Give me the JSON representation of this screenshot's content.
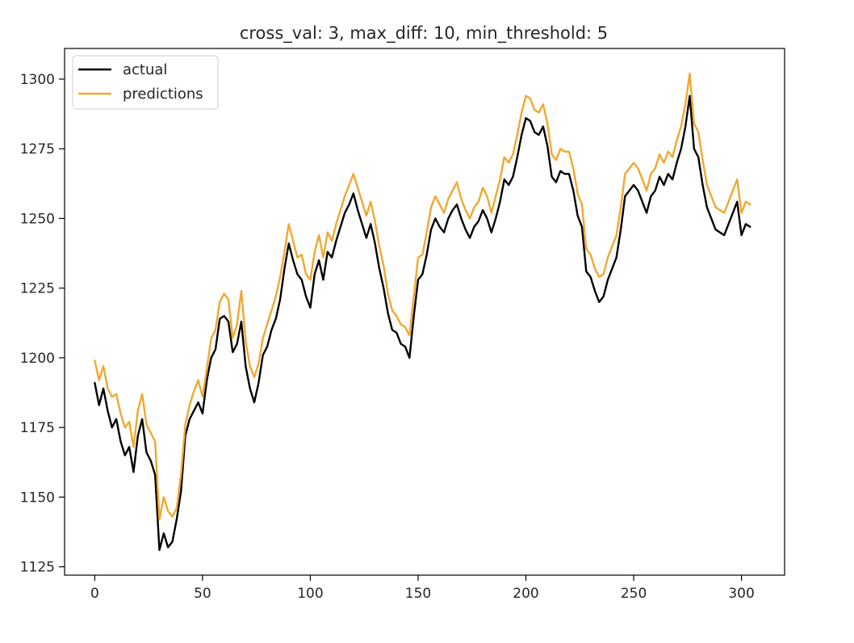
{
  "chart_data": {
    "type": "line",
    "title": "cross_val: 3, max_diff: 10, min_threshold: 5",
    "xlabel": "",
    "ylabel": "",
    "xlim": [
      -14,
      320
    ],
    "ylim": [
      1122,
      1311
    ],
    "x_ticks": [
      0,
      50,
      100,
      150,
      200,
      250,
      300
    ],
    "x_tick_labels": [
      "0",
      "50",
      "100",
      "150",
      "200",
      "250",
      "300"
    ],
    "y_ticks": [
      1125,
      1150,
      1175,
      1200,
      1225,
      1250,
      1275,
      1300
    ],
    "y_tick_labels": [
      "1125",
      "1150",
      "1175",
      "1200",
      "1225",
      "1250",
      "1275",
      "1300"
    ],
    "grid": false,
    "legend": {
      "position": "top-left"
    },
    "series": [
      {
        "name": "actual",
        "color": "#000000",
        "points": [
          [
            0,
            1191
          ],
          [
            2,
            1183
          ],
          [
            4,
            1189
          ],
          [
            6,
            1181
          ],
          [
            8,
            1175
          ],
          [
            10,
            1178
          ],
          [
            12,
            1170
          ],
          [
            14,
            1165
          ],
          [
            16,
            1168
          ],
          [
            18,
            1159
          ],
          [
            20,
            1172
          ],
          [
            22,
            1178
          ],
          [
            24,
            1166
          ],
          [
            26,
            1163
          ],
          [
            28,
            1158
          ],
          [
            30,
            1131
          ],
          [
            32,
            1137
          ],
          [
            34,
            1132
          ],
          [
            36,
            1134
          ],
          [
            38,
            1142
          ],
          [
            40,
            1152
          ],
          [
            42,
            1172
          ],
          [
            44,
            1178
          ],
          [
            46,
            1181
          ],
          [
            48,
            1184
          ],
          [
            50,
            1180
          ],
          [
            52,
            1192
          ],
          [
            54,
            1200
          ],
          [
            56,
            1203
          ],
          [
            58,
            1214
          ],
          [
            60,
            1215
          ],
          [
            62,
            1213
          ],
          [
            64,
            1202
          ],
          [
            66,
            1205
          ],
          [
            68,
            1213
          ],
          [
            70,
            1197
          ],
          [
            72,
            1189
          ],
          [
            74,
            1184
          ],
          [
            76,
            1191
          ],
          [
            78,
            1201
          ],
          [
            80,
            1204
          ],
          [
            82,
            1210
          ],
          [
            84,
            1214
          ],
          [
            86,
            1221
          ],
          [
            88,
            1232
          ],
          [
            90,
            1241
          ],
          [
            92,
            1235
          ],
          [
            94,
            1230
          ],
          [
            96,
            1228
          ],
          [
            98,
            1222
          ],
          [
            100,
            1218
          ],
          [
            102,
            1230
          ],
          [
            104,
            1235
          ],
          [
            106,
            1228
          ],
          [
            108,
            1238
          ],
          [
            110,
            1236
          ],
          [
            112,
            1242
          ],
          [
            114,
            1247
          ],
          [
            116,
            1252
          ],
          [
            118,
            1255
          ],
          [
            120,
            1259
          ],
          [
            122,
            1253
          ],
          [
            124,
            1248
          ],
          [
            126,
            1243
          ],
          [
            128,
            1248
          ],
          [
            130,
            1241
          ],
          [
            132,
            1232
          ],
          [
            134,
            1225
          ],
          [
            136,
            1216
          ],
          [
            138,
            1210
          ],
          [
            140,
            1209
          ],
          [
            142,
            1205
          ],
          [
            144,
            1204
          ],
          [
            146,
            1200
          ],
          [
            148,
            1215
          ],
          [
            150,
            1228
          ],
          [
            152,
            1230
          ],
          [
            154,
            1237
          ],
          [
            156,
            1246
          ],
          [
            158,
            1250
          ],
          [
            160,
            1247
          ],
          [
            162,
            1245
          ],
          [
            164,
            1250
          ],
          [
            166,
            1253
          ],
          [
            168,
            1255
          ],
          [
            170,
            1250
          ],
          [
            172,
            1246
          ],
          [
            174,
            1243
          ],
          [
            176,
            1247
          ],
          [
            178,
            1249
          ],
          [
            180,
            1253
          ],
          [
            182,
            1250
          ],
          [
            184,
            1245
          ],
          [
            186,
            1250
          ],
          [
            188,
            1256
          ],
          [
            190,
            1264
          ],
          [
            192,
            1262
          ],
          [
            194,
            1265
          ],
          [
            196,
            1272
          ],
          [
            198,
            1280
          ],
          [
            200,
            1286
          ],
          [
            202,
            1285
          ],
          [
            204,
            1281
          ],
          [
            206,
            1280
          ],
          [
            208,
            1283
          ],
          [
            210,
            1276
          ],
          [
            212,
            1265
          ],
          [
            214,
            1263
          ],
          [
            216,
            1267
          ],
          [
            218,
            1266
          ],
          [
            220,
            1266
          ],
          [
            222,
            1260
          ],
          [
            224,
            1251
          ],
          [
            226,
            1247
          ],
          [
            228,
            1231
          ],
          [
            230,
            1229
          ],
          [
            232,
            1224
          ],
          [
            234,
            1220
          ],
          [
            236,
            1222
          ],
          [
            238,
            1228
          ],
          [
            240,
            1232
          ],
          [
            242,
            1236
          ],
          [
            244,
            1246
          ],
          [
            246,
            1258
          ],
          [
            248,
            1260
          ],
          [
            250,
            1262
          ],
          [
            252,
            1260
          ],
          [
            254,
            1256
          ],
          [
            256,
            1252
          ],
          [
            258,
            1258
          ],
          [
            260,
            1260
          ],
          [
            262,
            1265
          ],
          [
            264,
            1262
          ],
          [
            266,
            1266
          ],
          [
            268,
            1264
          ],
          [
            270,
            1270
          ],
          [
            272,
            1275
          ],
          [
            274,
            1283
          ],
          [
            276,
            1294
          ],
          [
            278,
            1275
          ],
          [
            280,
            1272
          ],
          [
            282,
            1262
          ],
          [
            284,
            1254
          ],
          [
            286,
            1250
          ],
          [
            288,
            1246
          ],
          [
            290,
            1245
          ],
          [
            292,
            1244
          ],
          [
            294,
            1248
          ],
          [
            296,
            1252
          ],
          [
            298,
            1256
          ],
          [
            300,
            1244
          ],
          [
            302,
            1248
          ],
          [
            304,
            1247
          ]
        ]
      },
      {
        "name": "predictions",
        "color": "#f0a830",
        "points": [
          [
            0,
            1199
          ],
          [
            2,
            1192
          ],
          [
            4,
            1197
          ],
          [
            6,
            1189
          ],
          [
            8,
            1186
          ],
          [
            10,
            1187
          ],
          [
            12,
            1180
          ],
          [
            14,
            1175
          ],
          [
            16,
            1177
          ],
          [
            18,
            1168
          ],
          [
            20,
            1181
          ],
          [
            22,
            1187
          ],
          [
            24,
            1176
          ],
          [
            26,
            1173
          ],
          [
            28,
            1170
          ],
          [
            30,
            1142
          ],
          [
            32,
            1150
          ],
          [
            34,
            1145
          ],
          [
            36,
            1143
          ],
          [
            38,
            1146
          ],
          [
            40,
            1158
          ],
          [
            42,
            1176
          ],
          [
            44,
            1183
          ],
          [
            46,
            1188
          ],
          [
            48,
            1192
          ],
          [
            50,
            1186
          ],
          [
            52,
            1196
          ],
          [
            54,
            1207
          ],
          [
            56,
            1210
          ],
          [
            58,
            1220
          ],
          [
            60,
            1223
          ],
          [
            62,
            1221
          ],
          [
            64,
            1207
          ],
          [
            66,
            1212
          ],
          [
            68,
            1224
          ],
          [
            70,
            1206
          ],
          [
            72,
            1197
          ],
          [
            74,
            1193
          ],
          [
            76,
            1198
          ],
          [
            78,
            1207
          ],
          [
            80,
            1212
          ],
          [
            82,
            1217
          ],
          [
            84,
            1222
          ],
          [
            86,
            1229
          ],
          [
            88,
            1238
          ],
          [
            90,
            1248
          ],
          [
            92,
            1242
          ],
          [
            94,
            1236
          ],
          [
            96,
            1237
          ],
          [
            98,
            1230
          ],
          [
            100,
            1228
          ],
          [
            102,
            1238
          ],
          [
            104,
            1244
          ],
          [
            106,
            1236
          ],
          [
            108,
            1245
          ],
          [
            110,
            1242
          ],
          [
            112,
            1248
          ],
          [
            114,
            1253
          ],
          [
            116,
            1258
          ],
          [
            118,
            1262
          ],
          [
            120,
            1266
          ],
          [
            122,
            1261
          ],
          [
            124,
            1256
          ],
          [
            126,
            1251
          ],
          [
            128,
            1256
          ],
          [
            130,
            1249
          ],
          [
            132,
            1240
          ],
          [
            134,
            1233
          ],
          [
            136,
            1223
          ],
          [
            138,
            1217
          ],
          [
            140,
            1215
          ],
          [
            142,
            1212
          ],
          [
            144,
            1211
          ],
          [
            146,
            1208
          ],
          [
            148,
            1222
          ],
          [
            150,
            1236
          ],
          [
            152,
            1237
          ],
          [
            154,
            1245
          ],
          [
            156,
            1254
          ],
          [
            158,
            1258
          ],
          [
            160,
            1255
          ],
          [
            162,
            1252
          ],
          [
            164,
            1257
          ],
          [
            166,
            1260
          ],
          [
            168,
            1263
          ],
          [
            170,
            1257
          ],
          [
            172,
            1253
          ],
          [
            174,
            1250
          ],
          [
            176,
            1254
          ],
          [
            178,
            1256
          ],
          [
            180,
            1261
          ],
          [
            182,
            1258
          ],
          [
            184,
            1252
          ],
          [
            186,
            1258
          ],
          [
            188,
            1264
          ],
          [
            190,
            1272
          ],
          [
            192,
            1270
          ],
          [
            194,
            1273
          ],
          [
            196,
            1280
          ],
          [
            198,
            1288
          ],
          [
            200,
            1294
          ],
          [
            202,
            1293
          ],
          [
            204,
            1289
          ],
          [
            206,
            1288
          ],
          [
            208,
            1291
          ],
          [
            210,
            1284
          ],
          [
            212,
            1273
          ],
          [
            214,
            1271
          ],
          [
            216,
            1275
          ],
          [
            218,
            1274
          ],
          [
            220,
            1274
          ],
          [
            222,
            1268
          ],
          [
            224,
            1259
          ],
          [
            226,
            1255
          ],
          [
            228,
            1239
          ],
          [
            230,
            1237
          ],
          [
            232,
            1232
          ],
          [
            234,
            1229
          ],
          [
            236,
            1230
          ],
          [
            238,
            1236
          ],
          [
            240,
            1240
          ],
          [
            242,
            1244
          ],
          [
            244,
            1254
          ],
          [
            246,
            1266
          ],
          [
            248,
            1268
          ],
          [
            250,
            1270
          ],
          [
            252,
            1268
          ],
          [
            254,
            1264
          ],
          [
            256,
            1260
          ],
          [
            258,
            1266
          ],
          [
            260,
            1268
          ],
          [
            262,
            1273
          ],
          [
            264,
            1270
          ],
          [
            266,
            1274
          ],
          [
            268,
            1272
          ],
          [
            270,
            1278
          ],
          [
            272,
            1283
          ],
          [
            274,
            1291
          ],
          [
            276,
            1302
          ],
          [
            278,
            1284
          ],
          [
            280,
            1281
          ],
          [
            282,
            1271
          ],
          [
            284,
            1262
          ],
          [
            286,
            1258
          ],
          [
            288,
            1254
          ],
          [
            290,
            1253
          ],
          [
            292,
            1252
          ],
          [
            294,
            1256
          ],
          [
            296,
            1260
          ],
          [
            298,
            1264
          ],
          [
            300,
            1252
          ],
          [
            302,
            1256
          ],
          [
            304,
            1255
          ]
        ]
      }
    ]
  }
}
